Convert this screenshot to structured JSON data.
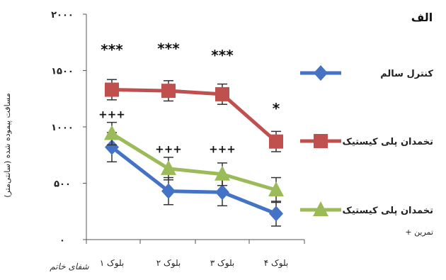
{
  "panel_label": "الف",
  "watermark": "شفای خاتم",
  "chart_data": {
    "type": "line",
    "ylabel": "مسافت پیموده شده (سانتی‌متر)",
    "ylim": [
      0,
      2000
    ],
    "yticks": [
      "۰",
      "۵۰۰",
      "۱۰۰۰",
      "۱۵۰۰",
      "۲۰۰۰"
    ],
    "categories": [
      "بلوک ۱",
      "بلوک ۲",
      "بلوک ۳",
      "بلوک ۴"
    ],
    "series": [
      {
        "name": "کنترل سالم",
        "color": "#4472C4",
        "marker": "diamond",
        "values": [
          820,
          430,
          420,
          230
        ],
        "errors": [
          130,
          120,
          120,
          110
        ]
      },
      {
        "name": "تخمدان پلی کیستیک",
        "color": "#C0504D",
        "marker": "square",
        "values": [
          1330,
          1320,
          1290,
          870
        ],
        "errors": [
          90,
          90,
          90,
          90
        ]
      },
      {
        "name": "تخمدان پلی کیستیک",
        "name_line2": "+ تمرین",
        "color": "#9BBB59",
        "marker": "triangle",
        "values": [
          940,
          630,
          580,
          440
        ],
        "errors": [
          100,
          100,
          100,
          110
        ]
      }
    ],
    "annotations": [
      {
        "text": "***",
        "category": 0,
        "y": 1640
      },
      {
        "text": "***",
        "category": 1,
        "y": 1650
      },
      {
        "text": "***",
        "category": 2,
        "y": 1590
      },
      {
        "text": "*",
        "category": 3,
        "y": 1120
      },
      {
        "text": "+++",
        "category": 0,
        "y": 1080
      },
      {
        "text": "+++",
        "category": 1,
        "y": 770
      },
      {
        "text": "+++",
        "category": 2,
        "y": 770
      }
    ]
  }
}
